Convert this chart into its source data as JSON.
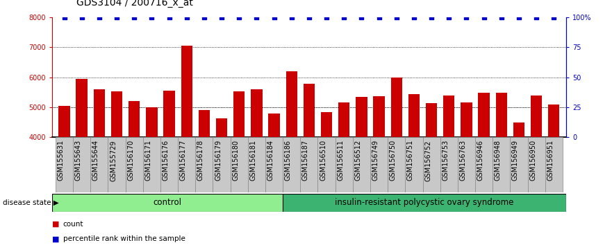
{
  "title": "GDS3104 / 200716_x_at",
  "samples": [
    "GSM155631",
    "GSM155643",
    "GSM155644",
    "GSM155729",
    "GSM156170",
    "GSM156171",
    "GSM156176",
    "GSM156177",
    "GSM156178",
    "GSM156179",
    "GSM156180",
    "GSM156181",
    "GSM156184",
    "GSM156186",
    "GSM156187",
    "GSM156510",
    "GSM156511",
    "GSM156512",
    "GSM156749",
    "GSM156750",
    "GSM156751",
    "GSM156752",
    "GSM156753",
    "GSM156763",
    "GSM156946",
    "GSM156948",
    "GSM156949",
    "GSM156950",
    "GSM156951"
  ],
  "values": [
    5050,
    5950,
    5600,
    5520,
    5200,
    5000,
    5550,
    7050,
    4900,
    4620,
    5520,
    5600,
    4800,
    6200,
    5780,
    4830,
    5150,
    5350,
    5370,
    6000,
    5430,
    5130,
    5400,
    5150,
    5480,
    5480,
    4500,
    5380,
    5100
  ],
  "percentile_values": [
    100,
    100,
    100,
    100,
    100,
    100,
    100,
    100,
    100,
    100,
    100,
    100,
    100,
    100,
    100,
    100,
    100,
    100,
    100,
    100,
    100,
    100,
    100,
    100,
    100,
    100,
    100,
    100,
    100
  ],
  "bar_color": "#CC0000",
  "percentile_color": "#0000CC",
  "ylim_left": [
    4000,
    8000
  ],
  "ylim_right": [
    0,
    100
  ],
  "yticks_left": [
    4000,
    5000,
    6000,
    7000,
    8000
  ],
  "yticks_right": [
    0,
    25,
    50,
    75,
    100
  ],
  "grid_values": [
    5000,
    6000,
    7000
  ],
  "control_count": 13,
  "control_label": "control",
  "disease_label": "insulin-resistant polycystic ovary syndrome",
  "control_color": "#90EE90",
  "disease_color": "#3CB371",
  "group_label_text": "disease state",
  "legend_count": "count",
  "legend_percentile": "percentile rank within the sample",
  "tick_fontsize": 7.0,
  "title_fontsize": 10,
  "bar_color_left_axis": "#CC0000",
  "bar_color_right_axis": "#0000CC",
  "xtick_bg_color": "#C8C8C8",
  "xtick_border_color": "#888888"
}
